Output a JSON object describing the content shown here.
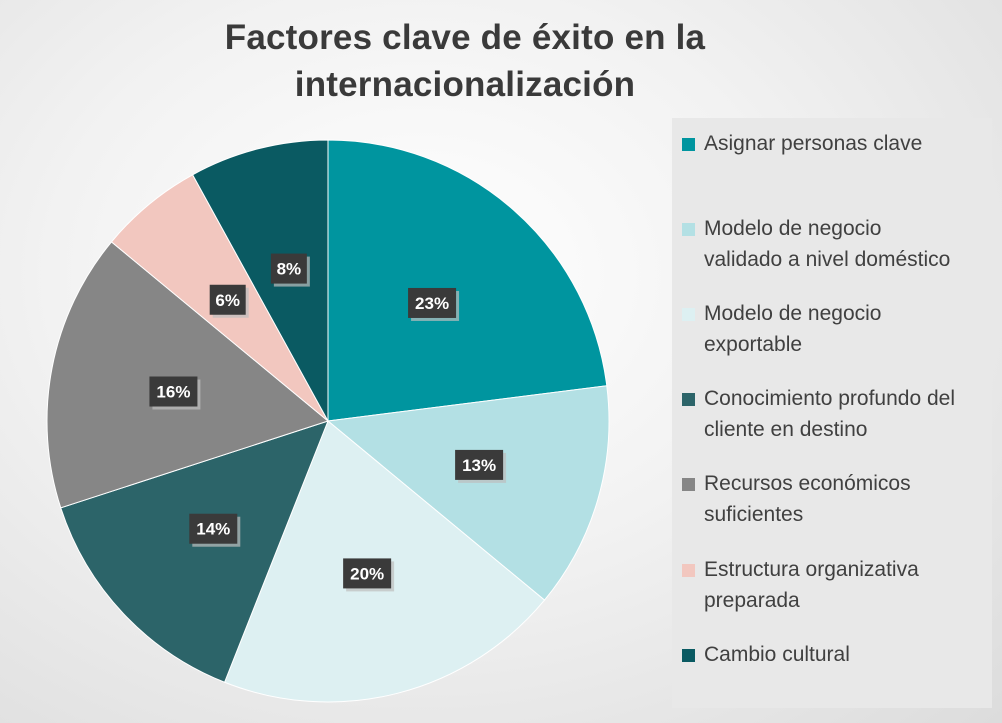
{
  "chart_data": {
    "type": "pie",
    "title_lines": [
      "Factores clave de éxito en la",
      "internacionalización"
    ],
    "legend_position": "right",
    "slices": [
      {
        "label": "Asignar personas clave",
        "value": 23,
        "display": "23%",
        "color": "#00959f"
      },
      {
        "label": "Modelo de negocio validado a nivel doméstico",
        "value": 13,
        "display": "13%",
        "color": "#b3e0e4"
      },
      {
        "label": "Modelo de negocio exportable",
        "value": 20,
        "display": "20%",
        "color": "#ddf0f2"
      },
      {
        "label": "Conocimiento profundo del cliente en destino",
        "value": 14,
        "display": "14%",
        "color": "#2c6469"
      },
      {
        "label": "Recursos económicos suficientes",
        "value": 16,
        "display": "16%",
        "color": "#868686"
      },
      {
        "label": "Estructura organizativa preparada",
        "value": 6,
        "display": "6%",
        "color": "#f2c7bf"
      },
      {
        "label": "Cambio cultural",
        "value": 8,
        "display": "8%",
        "color": "#0a5a62"
      }
    ],
    "legend_lines": [
      [
        "Asignar personas clave"
      ],
      [
        "Modelo de negocio",
        "validado a nivel doméstico"
      ],
      [
        "Modelo de negocio",
        "exportable"
      ],
      [
        "Conocimiento profundo del",
        "cliente en destino"
      ],
      [
        "Recursos económicos",
        "suficientes"
      ],
      [
        "Estructura organizativa",
        "preparada"
      ],
      [
        "Cambio cultural"
      ]
    ],
    "data_label_style": {
      "background": "#3a3a3a",
      "text_color": "#ffffff"
    }
  }
}
